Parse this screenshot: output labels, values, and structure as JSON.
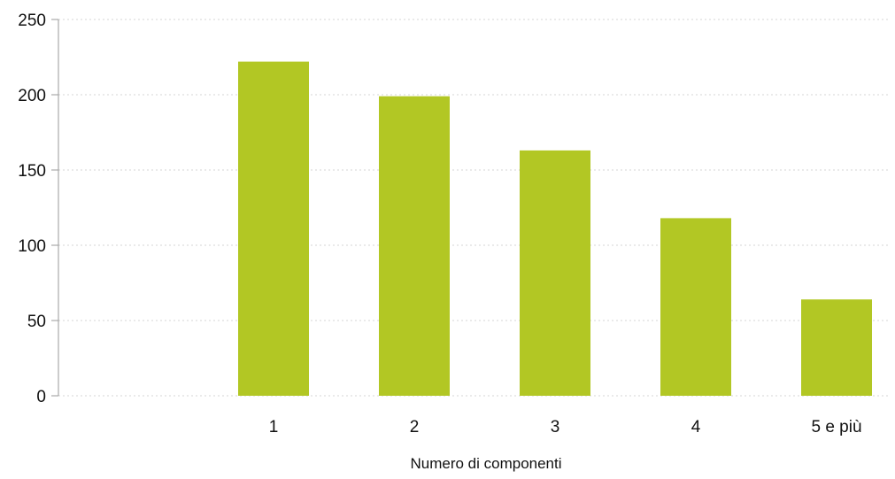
{
  "chart_data": {
    "type": "bar",
    "title": "",
    "xlabel": "Numero di componenti",
    "ylabel": "",
    "categories": [
      "1",
      "2",
      "3",
      "4",
      "5 e più"
    ],
    "values": [
      222,
      199,
      163,
      118,
      64
    ],
    "ylim": [
      0,
      250
    ],
    "yticks": [
      0,
      50,
      100,
      150,
      200,
      250
    ],
    "grid": true,
    "legend": "none",
    "colors": {
      "bar": "#b2c724",
      "grid": "#d4d4d4",
      "axis": "#9a9a9a",
      "text": "#111111"
    }
  }
}
